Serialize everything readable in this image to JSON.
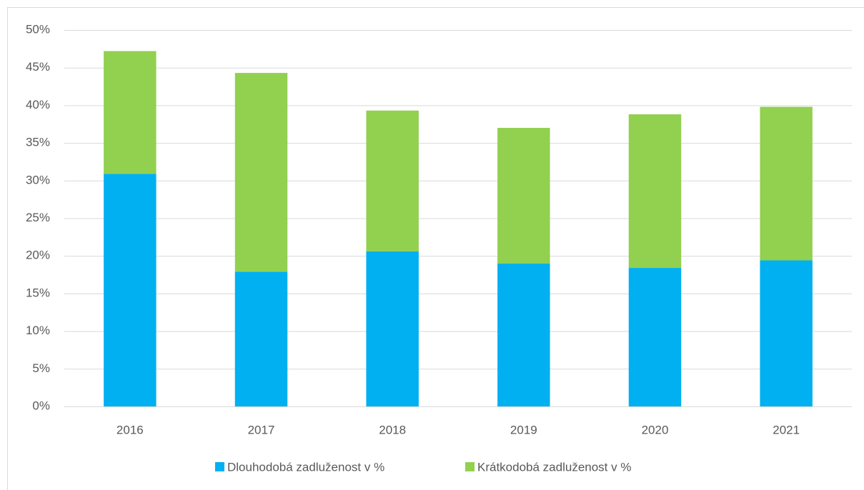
{
  "chart_data": {
    "type": "stacked-bar",
    "categories": [
      "2016",
      "2017",
      "2018",
      "2019",
      "2020",
      "2021"
    ],
    "series": [
      {
        "name": "Dlouhodobá zadluženost v %",
        "color": "#00b0f0",
        "values": [
          30.9,
          17.9,
          20.6,
          19.0,
          18.4,
          19.4
        ]
      },
      {
        "name": "Krátkodobá zadluženost v %",
        "color": "#92d050",
        "values": [
          16.3,
          26.4,
          18.7,
          18.0,
          20.4,
          20.4
        ]
      }
    ],
    "ylim": [
      0,
      50
    ],
    "yticks": [
      {
        "value": 0,
        "label": "0%"
      },
      {
        "value": 5,
        "label": "5%"
      },
      {
        "value": 10,
        "label": "10%"
      },
      {
        "value": 15,
        "label": "15%"
      },
      {
        "value": 20,
        "label": "20%"
      },
      {
        "value": 25,
        "label": "25%"
      },
      {
        "value": 30,
        "label": "30%"
      },
      {
        "value": 35,
        "label": "35%"
      },
      {
        "value": 40,
        "label": "40%"
      },
      {
        "value": 45,
        "label": "45%"
      },
      {
        "value": 50,
        "label": "50%"
      }
    ],
    "grid": true,
    "legend": "bottom"
  }
}
